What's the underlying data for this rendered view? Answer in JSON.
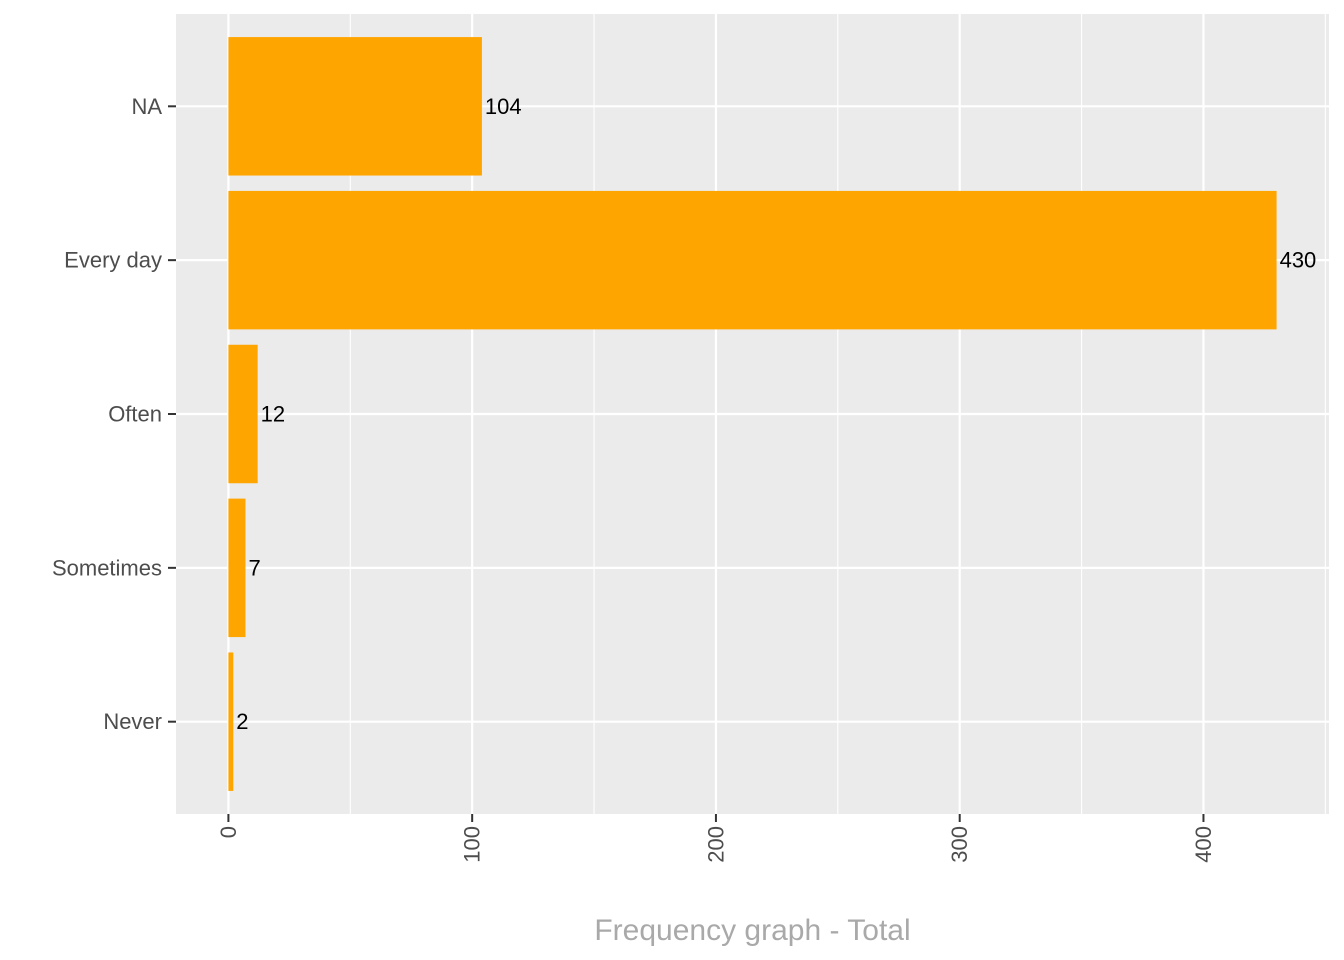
{
  "chart_data": {
    "type": "bar",
    "orientation": "horizontal",
    "categories": [
      "NA",
      "Every day",
      "Often",
      "Sometimes",
      "Never"
    ],
    "values": [
      104,
      430,
      12,
      7,
      2
    ],
    "data_labels": [
      "104",
      "430",
      "12",
      "7",
      "2"
    ],
    "xlabel": "Frequency graph - Total",
    "ylabel": "",
    "xlim": [
      -21.5,
      451.5
    ],
    "xticks": [
      0,
      100,
      200,
      300,
      400
    ],
    "xtick_labels": [
      "0",
      "100",
      "200",
      "300",
      "400"
    ],
    "grid": true,
    "legend": "none",
    "colors": {
      "bar": "#FFA500",
      "panel": "#EBEBEB",
      "grid": "#FFFFFF",
      "tick_text": "#4D4D4D",
      "tick_mark": "#333333",
      "data_label": "#000000",
      "axis_title": "#A9A9A9"
    }
  }
}
